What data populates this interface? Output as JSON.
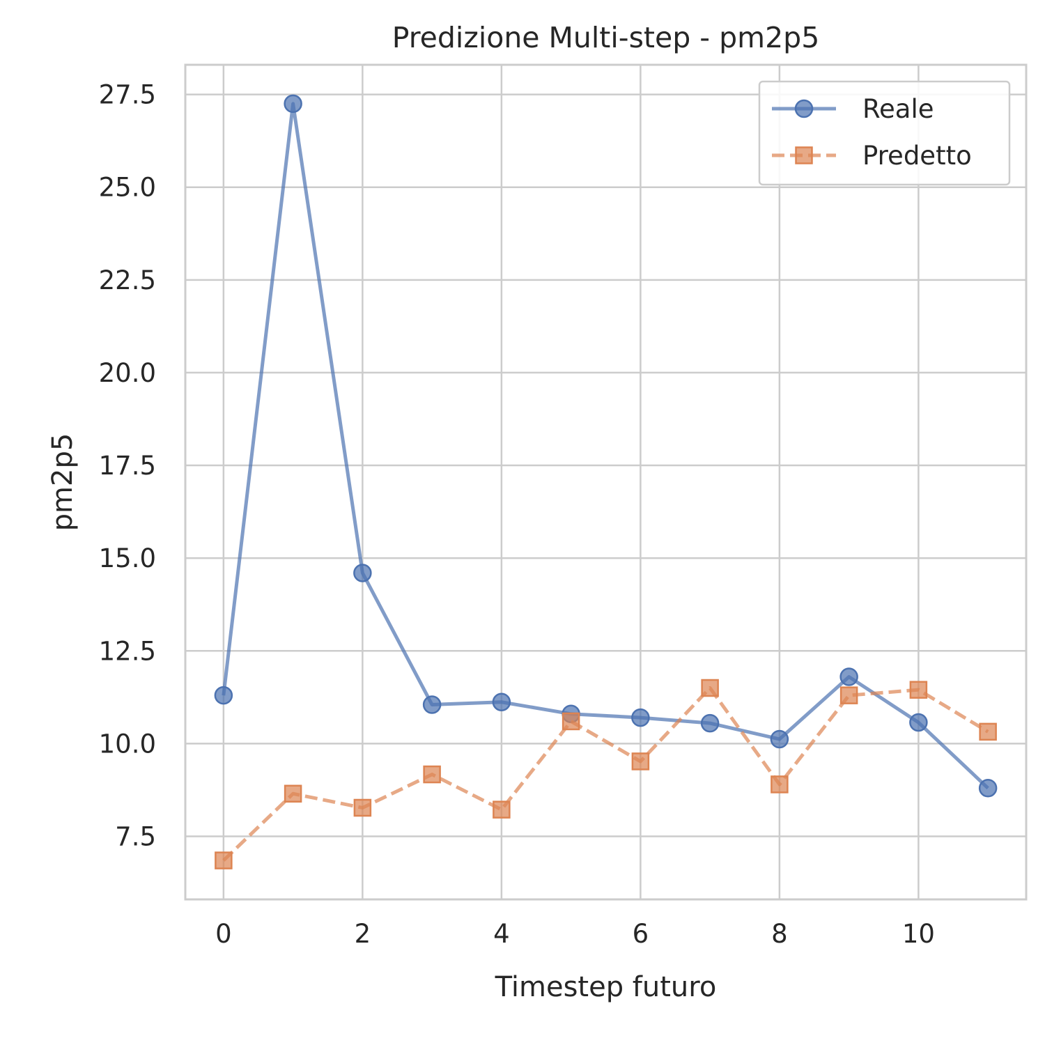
{
  "chart_data": {
    "type": "line",
    "title": "Predizione Multi-step - pm2p5",
    "xlabel": "Timestep futuro",
    "ylabel": "pm2p5",
    "x": [
      0,
      1,
      2,
      3,
      4,
      5,
      6,
      7,
      8,
      9,
      10,
      11
    ],
    "xlim": [
      -0.55,
      11.55
    ],
    "ylim": [
      5.8,
      28.3
    ],
    "x_ticks": [
      0,
      2,
      4,
      6,
      8,
      10
    ],
    "x_tick_labels": [
      "0",
      "2",
      "4",
      "6",
      "8",
      "10"
    ],
    "y_ticks": [
      7.5,
      10.0,
      12.5,
      15.0,
      17.5,
      20.0,
      22.5,
      25.0,
      27.5
    ],
    "y_tick_labels": [
      "7.5",
      "10.0",
      "12.5",
      "15.0",
      "17.5",
      "20.0",
      "22.5",
      "25.0",
      "27.5"
    ],
    "grid": true,
    "legend_position": "top-right",
    "series": [
      {
        "name": "Reale",
        "color": "#4c72b0",
        "marker": "circle",
        "line_style": "solid",
        "values": [
          11.3,
          27.25,
          14.6,
          11.05,
          11.12,
          10.8,
          10.7,
          10.55,
          10.12,
          11.8,
          10.57,
          8.8
        ]
      },
      {
        "name": "Predetto",
        "color": "#dd8452",
        "marker": "square",
        "line_style": "dashed",
        "values": [
          6.85,
          8.65,
          8.27,
          9.17,
          8.22,
          10.6,
          9.52,
          11.5,
          8.9,
          11.3,
          11.45,
          10.32
        ]
      }
    ]
  }
}
